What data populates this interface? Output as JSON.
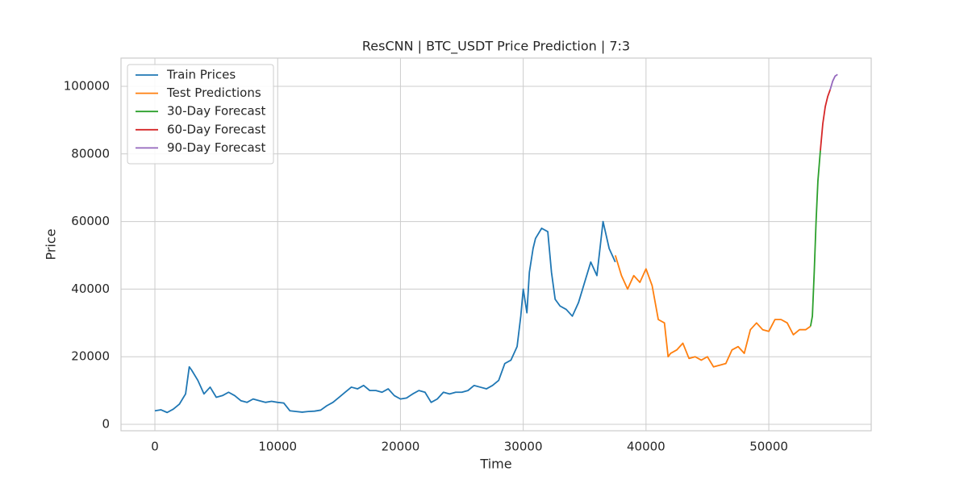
{
  "chart_data": {
    "type": "line",
    "title": "ResCNN | BTC_USDT Price Prediction | 7:3",
    "x_label": "Time",
    "y_label": "Price",
    "xlim": [
      -2760,
      58340
    ],
    "ylim": [
      -1900,
      108350
    ],
    "xticks": [
      0,
      10000,
      20000,
      30000,
      40000,
      50000
    ],
    "yticks": [
      0,
      20000,
      40000,
      60000,
      80000,
      100000
    ],
    "grid": true,
    "legend": "upper-left",
    "series": [
      {
        "name": "Train Prices",
        "color": "#1f77b4",
        "x": [
          0,
          500,
          1000,
          1500,
          2000,
          2500,
          2800,
          3000,
          3500,
          4000,
          4500,
          5000,
          5500,
          6000,
          6500,
          7000,
          7500,
          8000,
          8500,
          9000,
          9500,
          10000,
          10500,
          11000,
          11500,
          12000,
          12500,
          13000,
          13500,
          14000,
          14500,
          15000,
          15500,
          16000,
          16500,
          17000,
          17500,
          18000,
          18500,
          19000,
          19500,
          20000,
          20500,
          21000,
          21500,
          22000,
          22500,
          23000,
          23500,
          24000,
          24500,
          25000,
          25500,
          26000,
          26500,
          27000,
          27500,
          28000,
          28500,
          29000,
          29500,
          29800,
          30000,
          30300,
          30500,
          30800,
          31000,
          31500,
          32000,
          32300,
          32600,
          33000,
          33500,
          34000,
          34500,
          35000,
          35500,
          36000,
          36500,
          37000,
          37500
        ],
        "values": [
          4000,
          4300,
          3500,
          4500,
          6000,
          9000,
          17000,
          16000,
          13000,
          9000,
          11000,
          8000,
          8500,
          9500,
          8500,
          7000,
          6500,
          7500,
          7000,
          6500,
          6800,
          6500,
          6300,
          4000,
          3800,
          3600,
          3800,
          3900,
          4200,
          5500,
          6500,
          8000,
          9500,
          11000,
          10500,
          11500,
          10000,
          10000,
          9500,
          10500,
          8500,
          7500,
          7800,
          9000,
          10000,
          9500,
          6500,
          7500,
          9500,
          9000,
          9500,
          9500,
          10000,
          11500,
          11000,
          10500,
          11500,
          13000,
          18000,
          19000,
          23000,
          32000,
          40000,
          33000,
          45000,
          52000,
          55000,
          58000,
          57000,
          45000,
          37000,
          35000,
          34000,
          32000,
          36000,
          42000,
          48000,
          44000,
          60000,
          52000,
          48000
        ]
      },
      {
        "name": "Test Predictions",
        "color": "#ff7f0e",
        "x": [
          37500,
          38000,
          38500,
          39000,
          39500,
          40000,
          40500,
          41000,
          41500,
          41800,
          42000,
          42500,
          43000,
          43500,
          44000,
          44500,
          45000,
          45500,
          46000,
          46500,
          47000,
          47500,
          48000,
          48500,
          49000,
          49500,
          50000,
          50500,
          51000,
          51500,
          52000,
          52500,
          53000,
          53400
        ],
        "values": [
          50000,
          44000,
          40000,
          44000,
          42000,
          46000,
          41000,
          31000,
          30000,
          20000,
          21000,
          22000,
          24000,
          19500,
          20000,
          19000,
          20000,
          17000,
          17500,
          18000,
          22000,
          23000,
          21000,
          28000,
          30000,
          28000,
          27500,
          31000,
          31000,
          30000,
          26500,
          28000,
          28000,
          29000
        ]
      },
      {
        "name": "30-Day Forecast",
        "color": "#2ca02c",
        "x": [
          53400,
          53550,
          53700,
          53850,
          54000,
          54200
        ],
        "values": [
          29000,
          32000,
          45000,
          60000,
          72000,
          81000
        ]
      },
      {
        "name": "60-Day Forecast",
        "color": "#d62728",
        "x": [
          54200,
          54400,
          54600,
          54800,
          55000
        ],
        "values": [
          81000,
          89000,
          94000,
          97000,
          99000
        ]
      },
      {
        "name": "90-Day Forecast",
        "color": "#9467bd",
        "x": [
          55000,
          55200,
          55400,
          55600
        ],
        "values": [
          99000,
          101500,
          103000,
          103500
        ]
      }
    ]
  }
}
